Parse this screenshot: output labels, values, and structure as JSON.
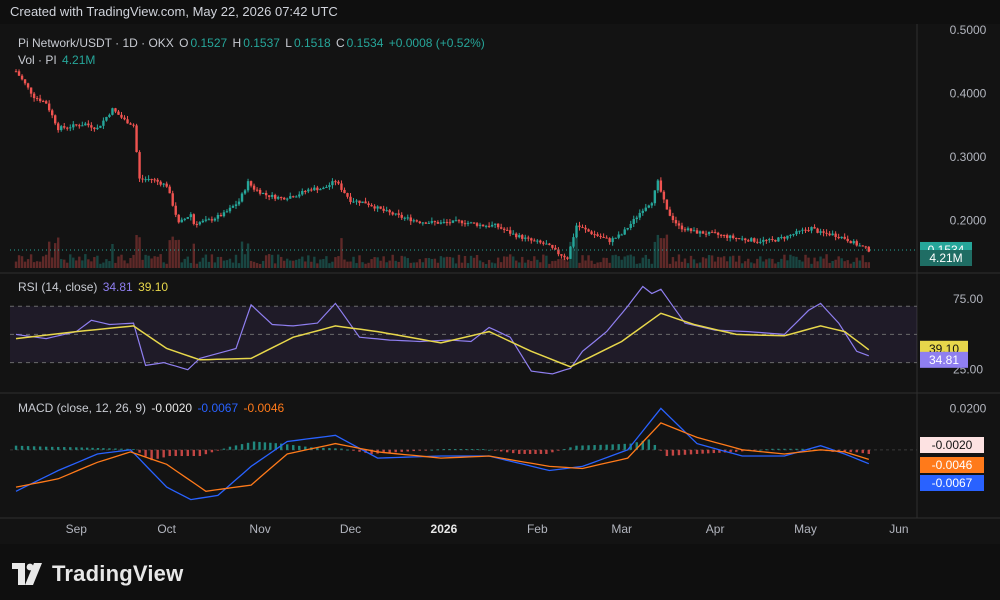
{
  "header": {
    "created_text": "Created with TradingView.com, May 22, 2026 07:42 UTC"
  },
  "legend": {
    "symbol": "Pi Network/USDT · 1D · OKX",
    "o_label": "O",
    "o_value": "0.1527",
    "h_label": "H",
    "h_value": "0.1537",
    "l_label": "L",
    "l_value": "0.1518",
    "c_label": "C",
    "c_value": "0.1534",
    "change": "+0.0008 (+0.52%)",
    "vol_label": "Vol · PI",
    "vol_value": "4.21M"
  },
  "rsi": {
    "label": "RSI (14, close)",
    "value": "34.81",
    "ma_value": "39.10"
  },
  "macd": {
    "label": "MACD (close, 12, 26, 9)",
    "hist_value": "-0.0020",
    "macd_value": "-0.0067",
    "signal_value": "-0.0046"
  },
  "footer": {
    "brand": "TradingView"
  },
  "colors": {
    "up": "#26a69a",
    "down": "#ef5350",
    "rsi": "#8f7ff0",
    "rsi_ma": "#e7d74b",
    "macd": "#2962ff",
    "signal": "#ff7a1a",
    "background": "#131313",
    "grid": "#2a2a2a"
  },
  "chart_data": [
    {
      "type": "candlestick",
      "title": "Pi Network/USDT · 1D · OKX",
      "y_ticks": [
        "0.5000",
        "0.4000",
        "0.3000",
        "0.2000"
      ],
      "ylim": [
        0.125,
        0.5
      ],
      "last_price_label": "0.1534",
      "volume_label": "4.21M",
      "x_tick_labels": [
        "Sep",
        "Oct",
        "Nov",
        "Dec",
        "2026",
        "Feb",
        "Mar",
        "Apr",
        "May",
        "Jun"
      ],
      "x_ticks": [
        "2025-09-01",
        "2025-10-01",
        "2025-11-01",
        "2025-12-01",
        "2026-01-01",
        "2026-02-01",
        "2026-03-01",
        "2026-04-01",
        "2026-05-01",
        "2026-06-01"
      ],
      "close_series": {
        "x": [
          "2025-08-12",
          "2025-08-15",
          "2025-08-18",
          "2025-08-22",
          "2025-08-26",
          "2025-08-30",
          "2025-09-04",
          "2025-09-08",
          "2025-09-13",
          "2025-09-17",
          "2025-09-20",
          "2025-09-22",
          "2025-09-26",
          "2025-10-01",
          "2025-10-05",
          "2025-10-09",
          "2025-10-10",
          "2025-10-15",
          "2025-10-20",
          "2025-10-25",
          "2025-10-28",
          "2025-10-30",
          "2025-11-03",
          "2025-11-08",
          "2025-11-13",
          "2025-11-18",
          "2025-11-22",
          "2025-11-26",
          "2025-12-01",
          "2025-12-06",
          "2025-12-12",
          "2025-12-18",
          "2025-12-24",
          "2025-12-31",
          "2026-01-07",
          "2026-01-14",
          "2026-01-18",
          "2026-01-24",
          "2026-01-30",
          "2026-02-04",
          "2026-02-08",
          "2026-02-11",
          "2026-02-14",
          "2026-02-19",
          "2026-02-25",
          "2026-03-01",
          "2026-03-05",
          "2026-03-08",
          "2026-03-11",
          "2026-03-13",
          "2026-03-16",
          "2026-03-20",
          "2026-03-25",
          "2026-04-01",
          "2026-04-08",
          "2026-04-15",
          "2026-04-20",
          "2026-04-25",
          "2026-04-29",
          "2026-05-03",
          "2026-05-06",
          "2026-05-10",
          "2026-05-14",
          "2026-05-18",
          "2026-05-22"
        ],
        "y": [
          0.435,
          0.415,
          0.395,
          0.385,
          0.345,
          0.348,
          0.352,
          0.345,
          0.375,
          0.358,
          0.35,
          0.265,
          0.265,
          0.255,
          0.195,
          0.21,
          0.195,
          0.2,
          0.21,
          0.23,
          0.26,
          0.25,
          0.24,
          0.235,
          0.24,
          0.25,
          0.25,
          0.262,
          0.232,
          0.228,
          0.215,
          0.205,
          0.198,
          0.196,
          0.198,
          0.192,
          0.192,
          0.178,
          0.168,
          0.162,
          0.148,
          0.141,
          0.192,
          0.18,
          0.168,
          0.178,
          0.2,
          0.218,
          0.23,
          0.26,
          0.215,
          0.19,
          0.182,
          0.178,
          0.172,
          0.168,
          0.168,
          0.175,
          0.182,
          0.188,
          0.18,
          0.178,
          0.172,
          0.162,
          0.1534
        ]
      }
    },
    {
      "type": "line",
      "title": "RSI (14, close)",
      "y_ticks": [
        "75.00",
        "25.00"
      ],
      "ylim": [
        12,
        90
      ],
      "band": [
        30,
        70
      ],
      "series": [
        {
          "name": "RSI",
          "x": [
            "2025-08-12",
            "2025-08-22",
            "2025-09-01",
            "2025-09-06",
            "2025-09-12",
            "2025-09-20",
            "2025-09-24",
            "2025-09-30",
            "2025-10-08",
            "2025-10-12",
            "2025-10-24",
            "2025-10-29",
            "2025-11-05",
            "2025-11-12",
            "2025-11-20",
            "2025-11-26",
            "2025-12-04",
            "2025-12-14",
            "2025-12-24",
            "2026-01-03",
            "2026-01-10",
            "2026-01-16",
            "2026-01-23",
            "2026-01-30",
            "2026-02-06",
            "2026-02-12",
            "2026-02-16",
            "2026-02-24",
            "2026-03-03",
            "2026-03-08",
            "2026-03-11",
            "2026-03-14",
            "2026-03-22",
            "2026-04-01",
            "2026-04-12",
            "2026-04-24",
            "2026-05-02",
            "2026-05-06",
            "2026-05-12",
            "2026-05-18",
            "2026-05-22"
          ],
          "y": [
            50,
            47,
            52,
            60,
            57,
            58,
            28,
            30,
            25,
            33,
            40,
            71,
            57,
            56,
            58,
            72,
            48,
            46,
            45,
            46,
            45,
            55,
            48,
            24,
            22,
            26,
            38,
            52,
            70,
            84,
            79,
            82,
            58,
            53,
            52,
            50,
            67,
            72,
            58,
            38,
            34.81
          ]
        },
        {
          "name": "RSI-based MA",
          "x": [
            "2025-08-12",
            "2025-09-01",
            "2025-09-20",
            "2025-10-01",
            "2025-10-12",
            "2025-10-29",
            "2025-11-12",
            "2025-11-26",
            "2025-12-10",
            "2025-12-31",
            "2026-01-16",
            "2026-01-30",
            "2026-02-12",
            "2026-03-01",
            "2026-03-14",
            "2026-03-25",
            "2026-04-08",
            "2026-04-24",
            "2026-05-06",
            "2026-05-14",
            "2026-05-22"
          ],
          "y": [
            47,
            52,
            56,
            40,
            32,
            33,
            48,
            56,
            52,
            44,
            52,
            38,
            27,
            45,
            65,
            57,
            50,
            49,
            56,
            52,
            39.1
          ]
        }
      ]
    },
    {
      "type": "bar",
      "title": "MACD (close, 12, 26, 9)",
      "y_ticks": [
        "0.0200"
      ],
      "ylim": [
        -0.03,
        0.025
      ],
      "series": [
        {
          "name": "MACD",
          "x": [
            "2025-08-12",
            "2025-08-26",
            "2025-09-08",
            "2025-09-19",
            "2025-10-01",
            "2025-10-09",
            "2025-10-18",
            "2025-10-29",
            "2025-11-10",
            "2025-11-26",
            "2025-12-10",
            "2025-12-31",
            "2026-01-16",
            "2026-02-05",
            "2026-02-16",
            "2026-03-03",
            "2026-03-14",
            "2026-03-26",
            "2026-04-10",
            "2026-04-24",
            "2026-05-06",
            "2026-05-14",
            "2026-05-22"
          ],
          "y": [
            -0.02,
            -0.01,
            -0.002,
            0.0,
            -0.018,
            -0.024,
            -0.022,
            -0.008,
            0.004,
            0.007,
            -0.004,
            -0.003,
            -0.003,
            -0.01,
            -0.008,
            0.0,
            0.02,
            0.003,
            -0.003,
            -0.003,
            0.002,
            -0.002,
            -0.0067
          ]
        },
        {
          "name": "Signal",
          "x": [
            "2025-08-12",
            "2025-08-26",
            "2025-09-08",
            "2025-09-19",
            "2025-10-01",
            "2025-10-14",
            "2025-10-29",
            "2025-11-10",
            "2025-11-26",
            "2025-12-10",
            "2025-12-31",
            "2026-01-16",
            "2026-02-05",
            "2026-02-16",
            "2026-03-03",
            "2026-03-14",
            "2026-03-26",
            "2026-04-10",
            "2026-04-24",
            "2026-05-06",
            "2026-05-14",
            "2026-05-22"
          ],
          "y": [
            -0.018,
            -0.014,
            -0.006,
            -0.001,
            -0.007,
            -0.02,
            -0.017,
            -0.002,
            0.003,
            -0.001,
            -0.004,
            -0.003,
            -0.008,
            -0.009,
            -0.004,
            0.013,
            0.006,
            0.0,
            -0.002,
            0.0,
            -0.001,
            -0.0046
          ]
        },
        {
          "name": "Histogram",
          "x": [
            "2025-08-12",
            "2025-08-22",
            "2025-09-01",
            "2025-09-10",
            "2025-09-20",
            "2025-09-26",
            "2025-10-02",
            "2025-10-12",
            "2025-10-22",
            "2025-10-30",
            "2025-11-08",
            "2025-11-18",
            "2025-11-28",
            "2025-12-08",
            "2025-12-20",
            "2026-01-01",
            "2026-01-14",
            "2026-01-26",
            "2026-02-04",
            "2026-02-14",
            "2026-02-24",
            "2026-03-04",
            "2026-03-10",
            "2026-03-16",
            "2026-03-26",
            "2026-04-08",
            "2026-04-20",
            "2026-05-02",
            "2026-05-10",
            "2026-05-18",
            "2026-05-22"
          ],
          "y": [
            0.002,
            0.0015,
            0.0012,
            0.0008,
            0.0004,
            -0.005,
            -0.003,
            -0.003,
            0.0015,
            0.004,
            0.003,
            0.0012,
            0.0006,
            -0.002,
            -0.0008,
            0.0004,
            0.0004,
            -0.002,
            -0.002,
            0.002,
            0.0025,
            0.003,
            0.005,
            -0.003,
            -0.002,
            -0.001,
            0.0005,
            0.0005,
            -0.001,
            -0.0012,
            -0.002
          ]
        }
      ]
    }
  ]
}
